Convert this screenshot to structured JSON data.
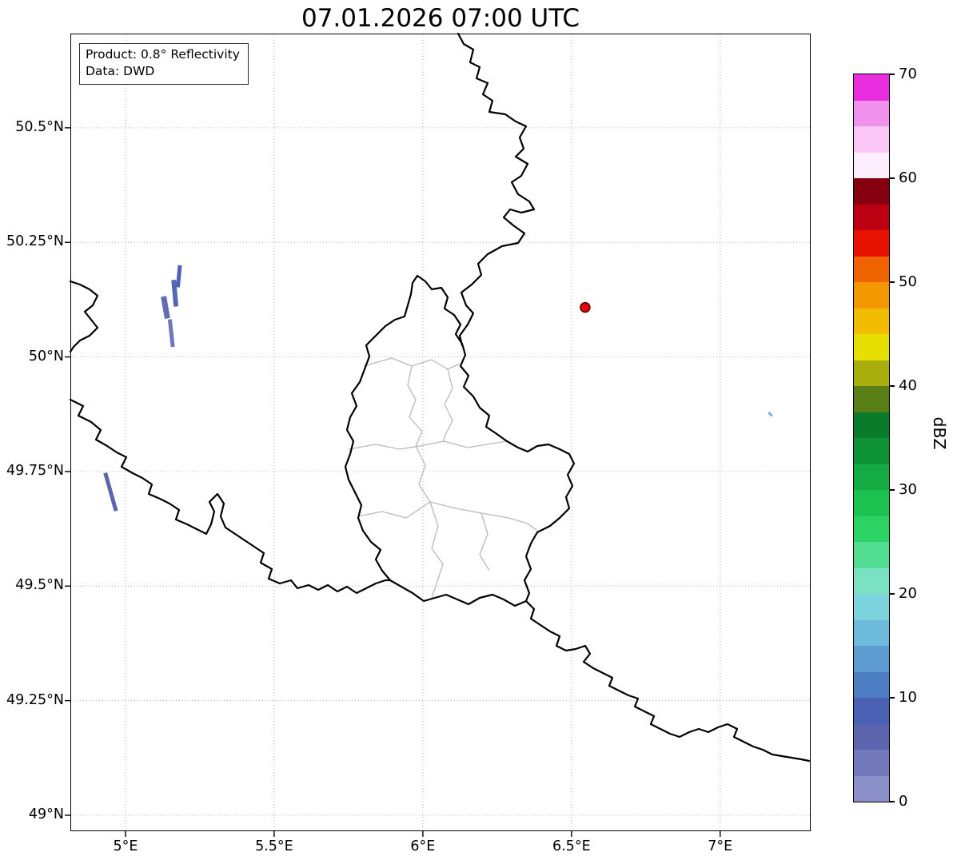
{
  "title": "07.01.2026 07:00 UTC",
  "info_box": {
    "line1": "Product: 0.8° Reflectivity",
    "line2": "Data: DWD"
  },
  "colorbar": {
    "label": "dBZ",
    "vmin": 0,
    "vmax": 70,
    "ticks": [
      0,
      10,
      20,
      30,
      40,
      50,
      60,
      70
    ],
    "colors": [
      "#8c90c8",
      "#7379ba",
      "#5c64ae",
      "#4a60b2",
      "#4d7dc2",
      "#5e9bd0",
      "#6ebada",
      "#7bd4de",
      "#7ae2c2",
      "#53dd92",
      "#2bd364",
      "#1cc250",
      "#14ab43",
      "#0e9336",
      "#097b2a",
      "#577f16",
      "#a8ae0e",
      "#e6df00",
      "#f2bd00",
      "#f29700",
      "#ef6400",
      "#e81200",
      "#bb0012",
      "#860010",
      "#fdeefd",
      "#f9c6f6",
      "#f193ee",
      "#e82ede"
    ]
  },
  "map": {
    "axes": {
      "lon_min": 4.8145,
      "lon_max": 7.3045,
      "lat_min": 48.9651,
      "lat_max": 50.7056,
      "x_ticks": [
        {
          "value": 5.0,
          "label": "5°E"
        },
        {
          "value": 5.5,
          "label": "5.5°E"
        },
        {
          "value": 6.0,
          "label": "6°E"
        },
        {
          "value": 6.5,
          "label": "6.5°E"
        },
        {
          "value": 7.0,
          "label": "7°E"
        }
      ],
      "y_ticks": [
        {
          "value": 50.5,
          "label": "50.5°N"
        },
        {
          "value": 50.25,
          "label": "50.25°N"
        },
        {
          "value": 50.0,
          "label": "50°N"
        },
        {
          "value": 49.75,
          "label": "49.75°N"
        },
        {
          "value": 49.5,
          "label": "49.5°N"
        },
        {
          "value": 49.25,
          "label": "49.25°N"
        },
        {
          "value": 49.0,
          "label": "49°N"
        }
      ]
    },
    "radar_marker": {
      "lon": 6.546,
      "lat": 50.108,
      "radius": 6,
      "color": "#e8000b",
      "edge_color": "#4d0000"
    },
    "echoes": [
      {
        "lon1": 5.183,
        "lat1": 50.2,
        "lon2": 5.176,
        "lat2": 50.152,
        "width": 5,
        "color": "#4e63b2"
      },
      {
        "lon1": 5.162,
        "lat1": 50.168,
        "lon2": 5.17,
        "lat2": 50.11,
        "width": 6,
        "color": "#5668b0"
      },
      {
        "lon1": 5.128,
        "lat1": 50.132,
        "lon2": 5.141,
        "lat2": 50.084,
        "width": 7,
        "color": "#5f6db2"
      },
      {
        "lon1": 5.149,
        "lat1": 50.082,
        "lon2": 5.159,
        "lat2": 50.022,
        "width": 5,
        "color": "#6d79ba"
      },
      {
        "lon1": 4.932,
        "lat1": 49.747,
        "lon2": 4.968,
        "lat2": 49.664,
        "width": 5,
        "color": "#5a66ae"
      },
      {
        "lon1": 7.163,
        "lat1": 49.879,
        "lon2": 7.175,
        "lat2": 49.871,
        "width": 3,
        "color": "#79b6da"
      }
    ]
  },
  "chart_data": {
    "type": "map",
    "title": "07.01.2026 07:00 UTC",
    "product": "0.8° Reflectivity",
    "data_source": "DWD",
    "colorbar": {
      "label": "dBZ",
      "min": 0,
      "max": 70,
      "ticks": [
        0,
        10,
        20,
        30,
        40,
        50,
        60,
        70
      ]
    },
    "lon_range": [
      4.81,
      7.3
    ],
    "lat_range": [
      48.97,
      50.71
    ],
    "radar_site": {
      "lon": 6.546,
      "lat": 50.108
    },
    "echo_clusters": [
      {
        "approx_lon": 5.16,
        "approx_lat": 50.12,
        "intensity_dbz": "0-10"
      },
      {
        "approx_lon": 4.95,
        "approx_lat": 49.7,
        "intensity_dbz": "0-10"
      },
      {
        "approx_lon": 7.17,
        "approx_lat": 49.87,
        "intensity_dbz": "5-15"
      }
    ]
  }
}
